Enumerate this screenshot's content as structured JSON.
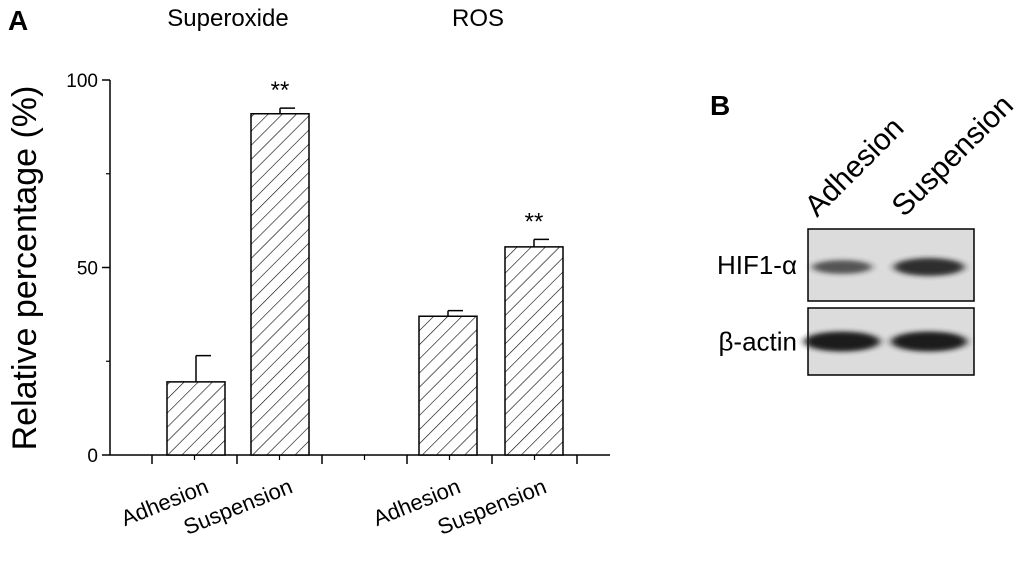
{
  "panels": {
    "a": "A",
    "b": "B"
  },
  "chart_data": {
    "type": "bar",
    "ylabel": "Relative percentage (%)",
    "ylim": [
      0,
      100
    ],
    "yticks": [
      "0",
      "50",
      "100"
    ],
    "groups": [
      {
        "title": "Superoxide",
        "bars": [
          {
            "category": "Adhesion",
            "value": 19.5,
            "error": 7,
            "annotation": ""
          },
          {
            "category": "Suspension",
            "value": 91,
            "error": 1.5,
            "annotation": "**"
          }
        ]
      },
      {
        "title": "ROS",
        "bars": [
          {
            "category": "Adhesion",
            "value": 37,
            "error": 1.5,
            "annotation": ""
          },
          {
            "category": "Suspension",
            "value": 55.5,
            "error": 2,
            "annotation": "**"
          }
        ]
      }
    ],
    "bar_pattern": "diagonal-hatch",
    "colors": {
      "hatch": "#000000",
      "bar_fill": "#ffffff"
    }
  },
  "blot": {
    "lanes": [
      "Adhesion",
      "Suspension"
    ],
    "rows": [
      {
        "label": "HIF1-α",
        "bands": [
          0.55,
          0.85
        ]
      },
      {
        "label": "β-actin",
        "bands": [
          1.0,
          1.0
        ]
      }
    ],
    "colors": {
      "background": "#dcdcdc",
      "band": "#1a1a1a"
    }
  }
}
